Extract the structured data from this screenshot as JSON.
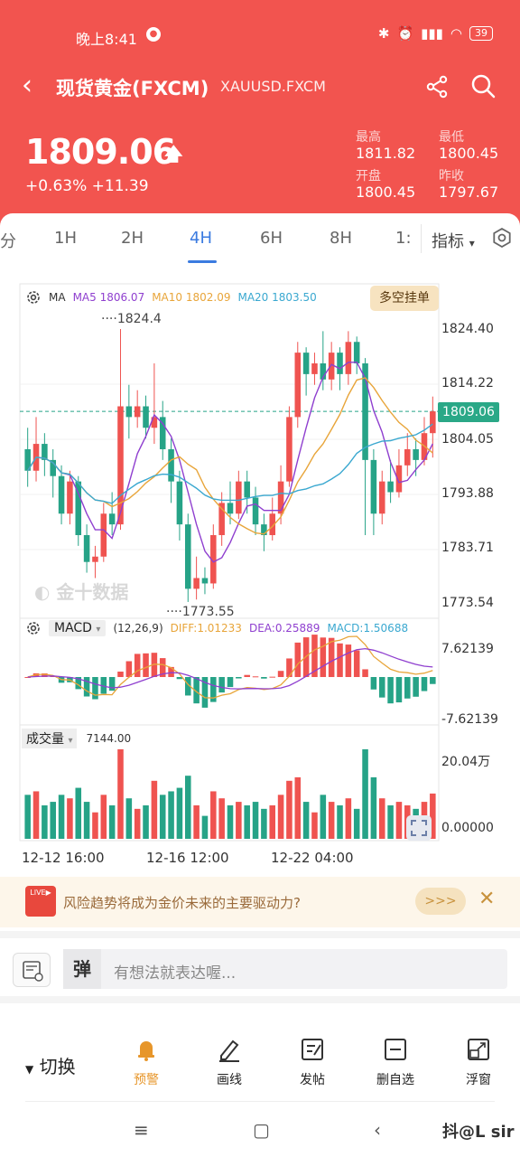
{
  "status": {
    "time": "晚上8:41",
    "battery": "39"
  },
  "nav": {
    "title": "现货黄金(FXCM)",
    "code": "XAUUSD.FXCM"
  },
  "quote": {
    "price": "1809.06",
    "change_pct": "+0.63%",
    "change_abs": "+11.39",
    "high_label": "最高",
    "high": "1811.82",
    "low_label": "最低",
    "low": "1800.45",
    "open_label": "开盘",
    "open": "1800.45",
    "prev_label": "昨收",
    "prev": "1797.67"
  },
  "tabs": {
    "items": [
      "分",
      "1H",
      "2H",
      "4H",
      "6H",
      "8H",
      "1:"
    ],
    "active": "4H",
    "indicator": "指标"
  },
  "chart": {
    "ma_label": "MA",
    "ma5": "MA5 1806.07",
    "ma10": "MA10 1802.09",
    "ma20": "MA20 1803.50",
    "duokong": "多空挂单",
    "y_labels": [
      "1824.40",
      "1814.22",
      "1804.05",
      "1793.88",
      "1783.71",
      "1773.54"
    ],
    "current": "1809.06",
    "high_mark": "1824.4",
    "low_mark": "1773.55",
    "macd_label": "MACD",
    "macd_params": "(12,26,9)",
    "diff": "DIFF:1.01233",
    "dea": "DEA:0.25889",
    "macd_val": "MACD:1.50688",
    "macd_top": "7.62139",
    "macd_bottom": "-7.62139",
    "vol_label": "成交量",
    "vol_val": "7144.00",
    "vol_top": "20.04万",
    "vol_bottom": "0.00000",
    "x_labels": [
      "12-12 16:00",
      "12-16 12:00",
      "12-22 04:00"
    ],
    "watermark": "金十数据"
  },
  "chart_data": {
    "type": "candlestick",
    "y_range": [
      1773.54,
      1824.4
    ],
    "candles": [
      {
        "o": 1802,
        "c": 1798,
        "h": 1806,
        "l": 1795
      },
      {
        "o": 1798,
        "c": 1803,
        "h": 1808,
        "l": 1796
      },
      {
        "o": 1803,
        "c": 1800,
        "h": 1805,
        "l": 1797
      },
      {
        "o": 1800,
        "c": 1797,
        "h": 1802,
        "l": 1793
      },
      {
        "o": 1797,
        "c": 1790,
        "h": 1799,
        "l": 1788
      },
      {
        "o": 1790,
        "c": 1796,
        "h": 1798,
        "l": 1788
      },
      {
        "o": 1796,
        "c": 1786,
        "h": 1797,
        "l": 1784
      },
      {
        "o": 1786,
        "c": 1781,
        "h": 1788,
        "l": 1779
      },
      {
        "o": 1781,
        "c": 1782,
        "h": 1784,
        "l": 1778
      },
      {
        "o": 1782,
        "c": 1790,
        "h": 1792,
        "l": 1781
      },
      {
        "o": 1790,
        "c": 1788,
        "h": 1794,
        "l": 1786
      },
      {
        "o": 1788,
        "c": 1810,
        "h": 1824.4,
        "l": 1787
      },
      {
        "o": 1810,
        "c": 1808,
        "h": 1814,
        "l": 1804
      },
      {
        "o": 1808,
        "c": 1810,
        "h": 1813,
        "l": 1806
      },
      {
        "o": 1810,
        "c": 1806,
        "h": 1812,
        "l": 1804
      },
      {
        "o": 1806,
        "c": 1808,
        "h": 1818,
        "l": 1803
      },
      {
        "o": 1808,
        "c": 1802,
        "h": 1811,
        "l": 1800
      },
      {
        "o": 1802,
        "c": 1796,
        "h": 1804,
        "l": 1792
      },
      {
        "o": 1796,
        "c": 1788,
        "h": 1798,
        "l": 1785
      },
      {
        "o": 1788,
        "c": 1776,
        "h": 1790,
        "l": 1773.55
      },
      {
        "o": 1776,
        "c": 1778,
        "h": 1782,
        "l": 1774
      },
      {
        "o": 1778,
        "c": 1777,
        "h": 1780,
        "l": 1775
      },
      {
        "o": 1777,
        "c": 1786,
        "h": 1788,
        "l": 1776
      },
      {
        "o": 1786,
        "c": 1792,
        "h": 1794,
        "l": 1784
      },
      {
        "o": 1792,
        "c": 1790,
        "h": 1796,
        "l": 1788
      },
      {
        "o": 1790,
        "c": 1796,
        "h": 1798,
        "l": 1789
      },
      {
        "o": 1796,
        "c": 1793,
        "h": 1798,
        "l": 1790
      },
      {
        "o": 1793,
        "c": 1788,
        "h": 1795,
        "l": 1786
      },
      {
        "o": 1788,
        "c": 1786,
        "h": 1790,
        "l": 1783
      },
      {
        "o": 1786,
        "c": 1790,
        "h": 1793,
        "l": 1785
      },
      {
        "o": 1790,
        "c": 1796,
        "h": 1799,
        "l": 1788
      },
      {
        "o": 1796,
        "c": 1808,
        "h": 1810,
        "l": 1795
      },
      {
        "o": 1808,
        "c": 1820,
        "h": 1822,
        "l": 1806
      },
      {
        "o": 1820,
        "c": 1816,
        "h": 1821,
        "l": 1812
      },
      {
        "o": 1816,
        "c": 1818,
        "h": 1820,
        "l": 1814
      },
      {
        "o": 1818,
        "c": 1815,
        "h": 1824,
        "l": 1813
      },
      {
        "o": 1815,
        "c": 1820,
        "h": 1822,
        "l": 1813
      },
      {
        "o": 1820,
        "c": 1816,
        "h": 1821,
        "l": 1813
      },
      {
        "o": 1816,
        "c": 1822,
        "h": 1824,
        "l": 1814
      },
      {
        "o": 1822,
        "c": 1818,
        "h": 1823,
        "l": 1816
      },
      {
        "o": 1818,
        "c": 1800,
        "h": 1819,
        "l": 1786
      },
      {
        "o": 1800,
        "c": 1790,
        "h": 1802,
        "l": 1786
      },
      {
        "o": 1790,
        "c": 1796,
        "h": 1798,
        "l": 1788
      },
      {
        "o": 1796,
        "c": 1794,
        "h": 1800,
        "l": 1792
      },
      {
        "o": 1794,
        "c": 1799,
        "h": 1802,
        "l": 1793
      },
      {
        "o": 1799,
        "c": 1802,
        "h": 1805,
        "l": 1797
      },
      {
        "o": 1802,
        "c": 1800,
        "h": 1804,
        "l": 1797
      },
      {
        "o": 1800,
        "c": 1805,
        "h": 1808,
        "l": 1799
      },
      {
        "o": 1805,
        "c": 1809.06,
        "h": 1811.82,
        "l": 1800.45
      }
    ],
    "volume_range": [
      0,
      200400
    ],
    "macd_range": [
      -7.62139,
      7.62139
    ]
  },
  "banner": {
    "text": "风险趋势将成为金价未来的主要驱动力?",
    "more": ">>>"
  },
  "comment": {
    "placeholder": "有想法就表达喔...",
    "logo": "弹"
  },
  "toolbar": {
    "switch": "切换",
    "items": [
      "预警",
      "画线",
      "发帖",
      "删自选",
      "浮窗"
    ]
  },
  "watermark": "抖@L sir",
  "colors": {
    "header": "#f2544f",
    "up": "#ef5350",
    "down": "#26a387",
    "ma5": "#8f3fcf",
    "ma10": "#e8a53a",
    "ma20": "#3aa8d0",
    "active": "#3b7be0"
  }
}
